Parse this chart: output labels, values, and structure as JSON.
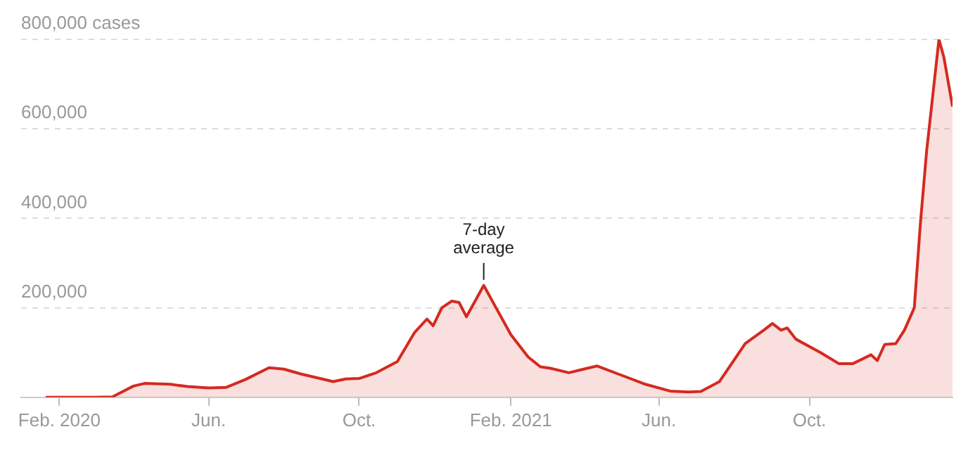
{
  "chart_data": {
    "type": "area",
    "x": [
      "2020-01-21",
      "2020-03-01",
      "2020-03-15",
      "2020-04-01",
      "2020-04-10",
      "2020-05-01",
      "2020-05-15",
      "2020-06-01",
      "2020-06-15",
      "2020-07-01",
      "2020-07-20",
      "2020-08-01",
      "2020-08-15",
      "2020-09-01",
      "2020-09-10",
      "2020-09-20",
      "2020-10-01",
      "2020-10-15",
      "2020-11-01",
      "2020-11-15",
      "2020-11-25",
      "2020-11-30",
      "2020-12-07",
      "2020-12-15",
      "2020-12-21",
      "2020-12-27",
      "2021-01-02",
      "2021-01-10",
      "2021-01-20",
      "2021-02-01",
      "2021-02-15",
      "2021-02-25",
      "2021-03-05",
      "2021-03-20",
      "2021-04-01",
      "2021-04-12",
      "2021-05-01",
      "2021-05-20",
      "2021-06-10",
      "2021-06-25",
      "2021-07-05",
      "2021-07-20",
      "2021-08-10",
      "2021-08-25",
      "2021-09-01",
      "2021-09-08",
      "2021-09-13",
      "2021-09-20",
      "2021-10-10",
      "2021-10-25",
      "2021-11-05",
      "2021-11-20",
      "2021-11-25",
      "2021-12-01",
      "2021-12-10",
      "2021-12-17",
      "2021-12-25",
      "2021-12-30",
      "2022-01-04",
      "2022-01-10",
      "2022-01-14",
      "2022-01-18",
      "2022-01-25"
    ],
    "series": [
      {
        "color": "#d42a20",
        "values": [
          0,
          0,
          1000,
          25000,
          31000,
          29000,
          24000,
          21000,
          22000,
          40000,
          66000,
          63000,
          52000,
          41000,
          35000,
          41000,
          42000,
          55000,
          80000,
          145000,
          175000,
          160000,
          200000,
          215000,
          212000,
          180000,
          210000,
          250000,
          200000,
          140000,
          90000,
          68000,
          65000,
          55000,
          63000,
          70000,
          50000,
          30000,
          14000,
          12000,
          13000,
          35000,
          120000,
          150000,
          165000,
          150000,
          155000,
          130000,
          100000,
          75000,
          75000,
          95000,
          82000,
          118000,
          120000,
          150000,
          200000,
          390000,
          550000,
          700000,
          800000,
          760000,
          650000
        ]
      }
    ],
    "xlim": [
      "2020-01-01",
      "2022-01-25"
    ],
    "xticks": [
      {
        "value": "2020-02-01",
        "label": "Feb. 2020"
      },
      {
        "value": "2020-06-01",
        "label": "Jun."
      },
      {
        "value": "2020-10-01",
        "label": "Oct."
      },
      {
        "value": "2021-02-01",
        "label": "Feb. 2021"
      },
      {
        "value": "2021-06-01",
        "label": "Jun."
      },
      {
        "value": "2021-10-01",
        "label": "Oct."
      }
    ],
    "ylim": [
      0,
      800000
    ],
    "yticks": [
      {
        "value": 0,
        "label": null
      },
      {
        "value": 200000,
        "label": "200,000"
      },
      {
        "value": 400000,
        "label": "400,000"
      },
      {
        "value": 600000,
        "label": "600,000"
      },
      {
        "value": 800000,
        "label": "800,000 cases"
      }
    ],
    "grid": "y",
    "annotations": [
      {
        "text": "7-day average",
        "x": "2021-01-10",
        "y": 250000
      }
    ]
  }
}
